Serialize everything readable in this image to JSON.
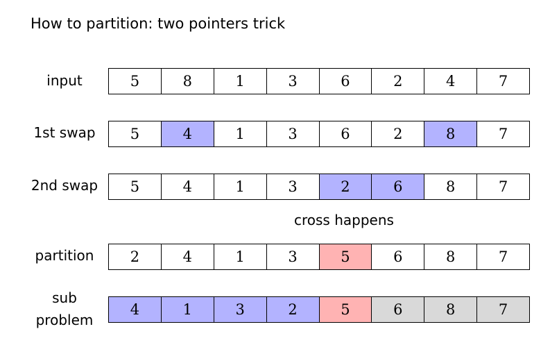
{
  "title": "How to partition: two pointers trick",
  "note": "cross happens",
  "colors": {
    "blue": "#b3b3ff",
    "red": "#ffb3b3",
    "gray": "#d9d9d9"
  },
  "rows": [
    {
      "label": "input",
      "cells": [
        {
          "v": "5"
        },
        {
          "v": "8"
        },
        {
          "v": "1"
        },
        {
          "v": "3"
        },
        {
          "v": "6"
        },
        {
          "v": "2"
        },
        {
          "v": "4"
        },
        {
          "v": "7"
        }
      ]
    },
    {
      "label": "1st swap",
      "cells": [
        {
          "v": "5"
        },
        {
          "v": "4",
          "hl": "blue"
        },
        {
          "v": "1"
        },
        {
          "v": "3"
        },
        {
          "v": "6"
        },
        {
          "v": "2"
        },
        {
          "v": "8",
          "hl": "blue"
        },
        {
          "v": "7"
        }
      ]
    },
    {
      "label": "2nd swap",
      "cells": [
        {
          "v": "5"
        },
        {
          "v": "4"
        },
        {
          "v": "1"
        },
        {
          "v": "3"
        },
        {
          "v": "2",
          "hl": "blue"
        },
        {
          "v": "6",
          "hl": "blue"
        },
        {
          "v": "8"
        },
        {
          "v": "7"
        }
      ]
    },
    {
      "label": "partition",
      "cells": [
        {
          "v": "2"
        },
        {
          "v": "4"
        },
        {
          "v": "1"
        },
        {
          "v": "3"
        },
        {
          "v": "5",
          "hl": "red"
        },
        {
          "v": "6"
        },
        {
          "v": "8"
        },
        {
          "v": "7"
        }
      ]
    },
    {
      "label_lines": [
        "sub",
        "problem"
      ],
      "cells": [
        {
          "v": "4",
          "hl": "blue"
        },
        {
          "v": "1",
          "hl": "blue"
        },
        {
          "v": "3",
          "hl": "blue"
        },
        {
          "v": "2",
          "hl": "blue"
        },
        {
          "v": "5",
          "hl": "red"
        },
        {
          "v": "6",
          "hl": "gray"
        },
        {
          "v": "8",
          "hl": "gray"
        },
        {
          "v": "7",
          "hl": "gray"
        }
      ]
    }
  ]
}
